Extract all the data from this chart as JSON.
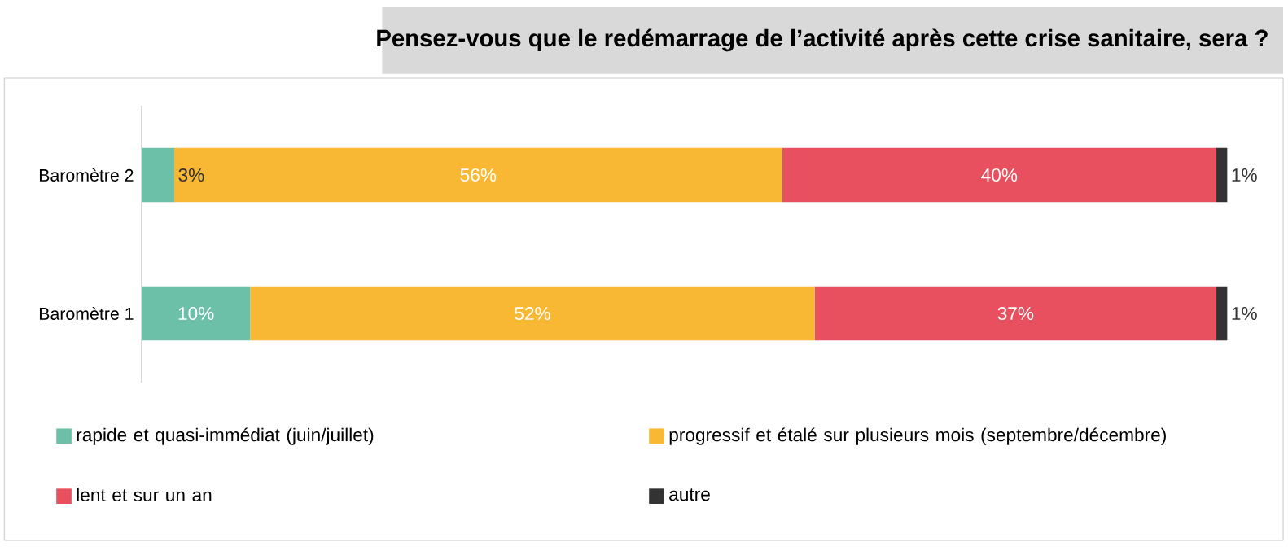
{
  "chart_data": {
    "type": "bar",
    "orientation": "horizontal",
    "stacked": true,
    "title": "Pensez-vous que le redémarrage de l’activité après cette crise sanitaire, sera ?",
    "categories": [
      "Baromètre 2",
      "Baromètre 1"
    ],
    "series": [
      {
        "name": "rapide et quasi-immédiat (juin/juillet)",
        "color": "#6cc0a8",
        "values": [
          3,
          10
        ],
        "value_labels": [
          "3%",
          "10%"
        ]
      },
      {
        "name": "progressif et étalé sur plusieurs mois (septembre/décembre)",
        "color": "#f8b834",
        "values": [
          56,
          52
        ],
        "value_labels": [
          "56%",
          "52%"
        ]
      },
      {
        "name": "lent et sur un an",
        "color": "#e8505f",
        "values": [
          40,
          37
        ],
        "value_labels": [
          "40%",
          "37%"
        ]
      },
      {
        "name": "autre",
        "color": "#333333",
        "values": [
          1,
          1
        ],
        "value_labels": [
          "1%",
          "1%"
        ]
      }
    ],
    "legend": "bottom"
  }
}
